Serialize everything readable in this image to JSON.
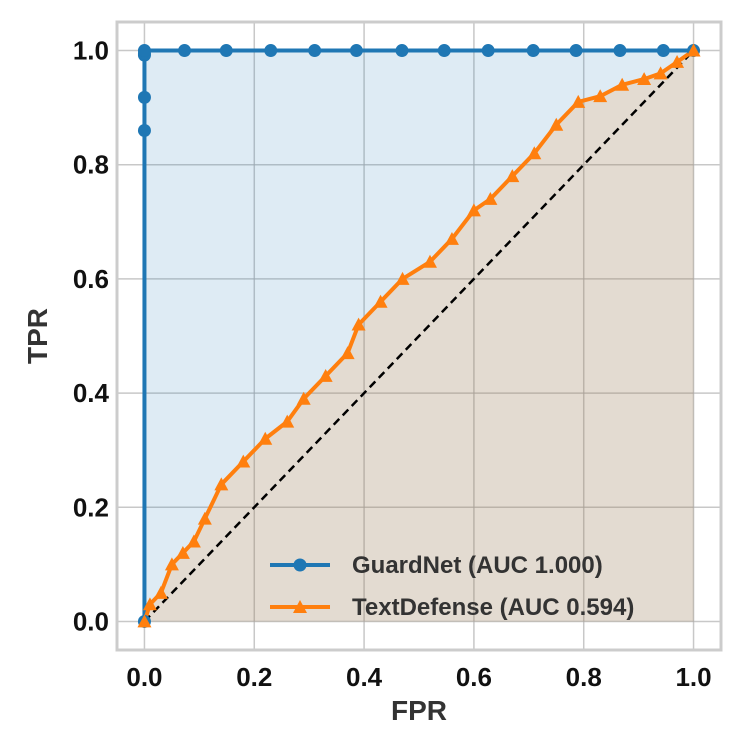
{
  "chart_data": {
    "type": "line",
    "title": "",
    "xlabel": "FPR",
    "ylabel": "TPR",
    "xlim": [
      -0.05,
      1.05
    ],
    "ylim": [
      -0.05,
      1.05
    ],
    "xticks": [
      0.0,
      0.2,
      0.4,
      0.6,
      0.8,
      1.0
    ],
    "yticks": [
      0.0,
      0.2,
      0.4,
      0.6,
      0.8,
      1.0
    ],
    "xtick_labels": [
      "0.0",
      "0.2",
      "0.4",
      "0.6",
      "0.8",
      "1.0"
    ],
    "ytick_labels": [
      "0.0",
      "0.2",
      "0.4",
      "0.6",
      "0.8",
      "1.0"
    ],
    "grid": true,
    "legend_position": "bottom-right",
    "diagonal_reference": true,
    "series": [
      {
        "name": "GuardNet (AUC 1.000)",
        "color": "#1f77b4",
        "marker": "circle",
        "fill": true,
        "x": [
          0.0,
          0.0,
          0.0,
          0.0,
          0.0,
          0.0,
          0.073,
          0.149,
          0.23,
          0.31,
          0.386,
          0.469,
          0.546,
          0.626,
          0.708,
          0.786,
          0.866,
          0.945,
          1.0
        ],
        "y": [
          0.0,
          0.86,
          0.918,
          0.992,
          0.995,
          1.0,
          1.0,
          1.0,
          1.0,
          1.0,
          1.0,
          1.0,
          1.0,
          1.0,
          1.0,
          1.0,
          1.0,
          1.0,
          1.0
        ]
      },
      {
        "name": "TextDefense (AUC 0.594)",
        "color": "#ff7f0e",
        "marker": "triangle",
        "fill": true,
        "x": [
          0.0,
          0.01,
          0.03,
          0.05,
          0.07,
          0.09,
          0.11,
          0.14,
          0.18,
          0.22,
          0.26,
          0.29,
          0.33,
          0.37,
          0.39,
          0.43,
          0.47,
          0.52,
          0.56,
          0.6,
          0.63,
          0.67,
          0.71,
          0.75,
          0.79,
          0.83,
          0.87,
          0.91,
          0.94,
          0.97,
          1.0
        ],
        "y": [
          0.0,
          0.03,
          0.05,
          0.1,
          0.12,
          0.14,
          0.18,
          0.24,
          0.28,
          0.32,
          0.35,
          0.39,
          0.43,
          0.47,
          0.52,
          0.56,
          0.6,
          0.63,
          0.67,
          0.72,
          0.74,
          0.78,
          0.82,
          0.87,
          0.91,
          0.92,
          0.94,
          0.95,
          0.96,
          0.98,
          1.0
        ]
      }
    ]
  }
}
